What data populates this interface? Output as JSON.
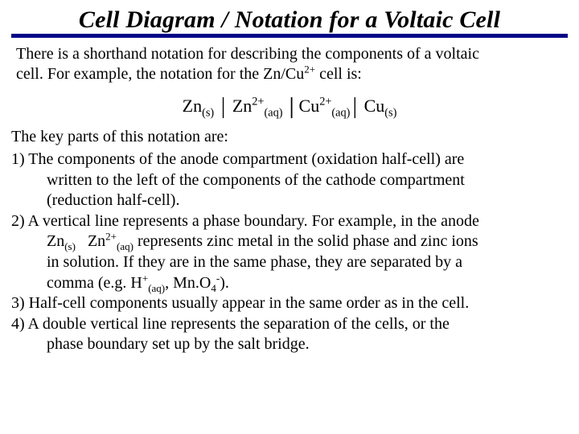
{
  "title": "Cell Diagram / Notation for a Voltaic Cell",
  "intro_a": "There is a shorthand notation for describing the components of a voltaic",
  "intro_b": "cell. For example, the notation for the Zn/Cu",
  "intro_c": " cell is:",
  "sup2plus": "2+",
  "notation": {
    "zn": "Zn",
    "s": "(s)",
    "aq": "(aq)",
    "cu": "Cu"
  },
  "keyintro": "The key parts of this notation are:",
  "p1a": "1) The components of the anode compartment (oxidation half-cell) are",
  "p1b": "written to the left of the components of the cathode compartment",
  "p1c": " (reduction half-cell).",
  "p2a": "2) A vertical line represents a phase boundary. For example, in the anode",
  "p2b_pre": "Zn",
  "p2b_mid": "   Zn",
  "p2b_post": " represents zinc metal in the solid phase and zinc ions",
  "p2c": "in solution. If they are in the same phase, they are separated by a",
  "p2d_pre": "comma (e.g. H",
  "p2d_mid": ", Mn.O",
  "p2d_post": ").",
  "plus": "+",
  "four": "4",
  "minus": "-",
  "p3": "3) Half-cell components usually appear in the same order as in the cell.",
  "p4a": "4) A double vertical line represents the separation of the cells, or the",
  "p4b": "phase boundary set up by the salt bridge.",
  "colors": {
    "rule": "#000087",
    "text": "#000000",
    "bg": "#ffffff"
  }
}
